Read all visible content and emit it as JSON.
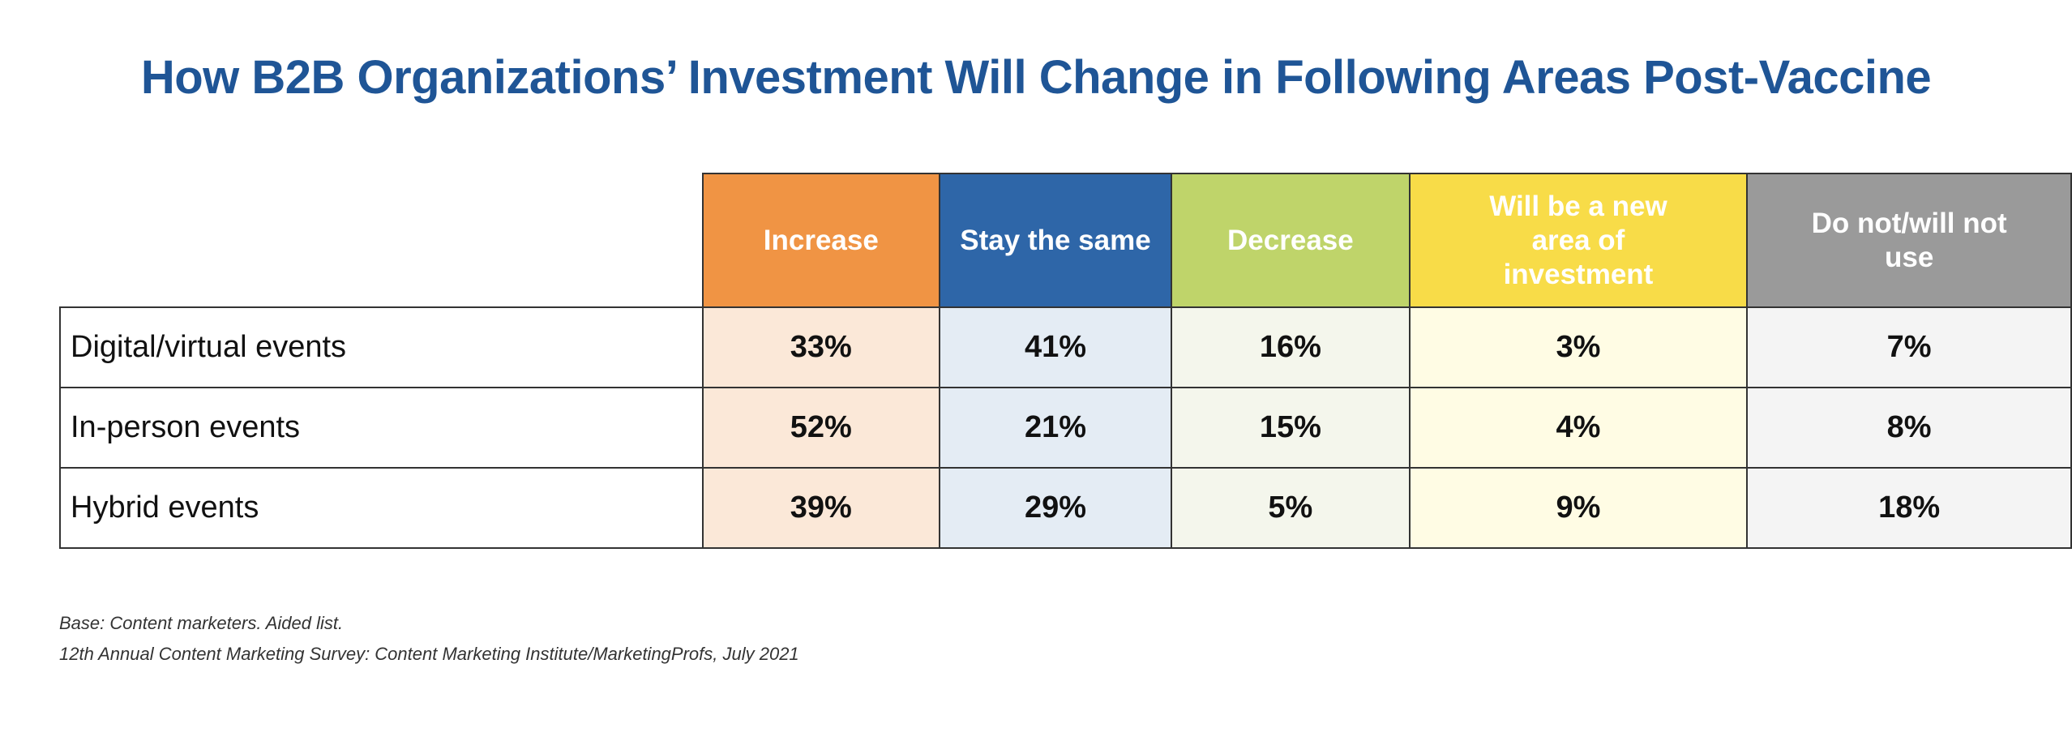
{
  "chart_data": {
    "type": "table",
    "title": "How B2B Organizations’ Investment Will Change in Following Areas Post-Vaccine",
    "columns": [
      {
        "label": "Increase",
        "header_color": "#f09444",
        "cell_color": "#fbe8d8"
      },
      {
        "label": "Stay the same",
        "header_color": "#2e66a8",
        "cell_color": "#e4ecf4"
      },
      {
        "label": "Decrease",
        "header_color": "#bfd46a",
        "cell_color": "#f4f6ec"
      },
      {
        "label": "Will be a new area of investment",
        "header_color": "#f8dc48",
        "cell_color": "#fffce4"
      },
      {
        "label": "Do not/will not use",
        "header_color": "#9a9a9a",
        "cell_color": "#f4f4f4"
      }
    ],
    "rows": [
      {
        "label": "Digital/virtual events",
        "values": [
          "33%",
          "41%",
          "16%",
          "3%",
          "7%"
        ]
      },
      {
        "label": "In-person events",
        "values": [
          "52%",
          "21%",
          "15%",
          "4%",
          "8%"
        ]
      },
      {
        "label": "Hybrid events",
        "values": [
          "39%",
          "29%",
          "5%",
          "9%",
          "18%"
        ]
      }
    ]
  },
  "notes": {
    "base": "Base: Content marketers. Aided list.",
    "source": "12th Annual Content Marketing Survey: Content Marketing Institute/MarketingProfs, July 2021"
  }
}
